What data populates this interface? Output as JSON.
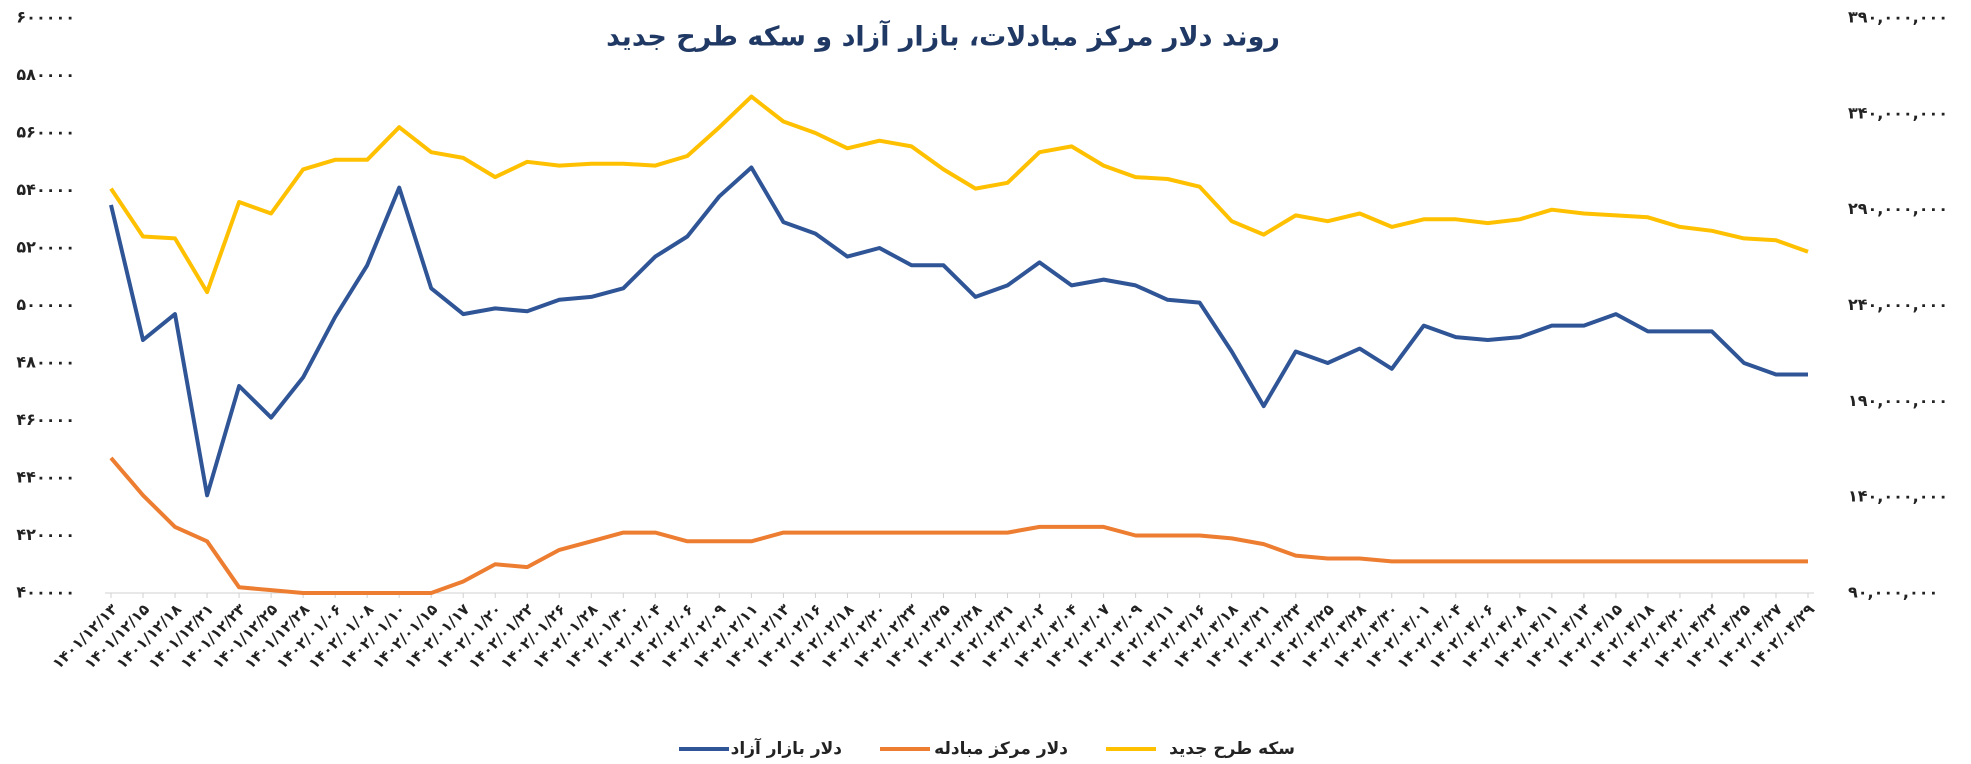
{
  "chart_data": {
    "type": "line",
    "title": "روند دلار مرکز مبادلات، بازار آزاد و سکه طرح جدید",
    "categories": [
      "۱۴۰۱/۱۲/۱۳",
      "۱۴۰۱/۱۲/۱۵",
      "۱۴۰۱/۱۲/۱۸",
      "۱۴۰۱/۱۲/۲۱",
      "۱۴۰۱/۱۲/۲۳",
      "۱۴۰۱/۱۲/۲۵",
      "۱۴۰۱/۱۲/۲۸",
      "۱۴۰۲/۰۱/۰۶",
      "۱۴۰۲/۰۱/۰۸",
      "۱۴۰۲/۰۱/۱۰",
      "۱۴۰۲/۰۱/۱۵",
      "۱۴۰۲/۰۱/۱۷",
      "۱۴۰۲/۰۱/۲۰",
      "۱۴۰۲/۰۱/۲۲",
      "۱۴۰۲/۰۱/۲۶",
      "۱۴۰۲/۰۱/۲۸",
      "۱۴۰۲/۰۱/۳۰",
      "۱۴۰۲/۰۲/۰۴",
      "۱۴۰۲/۰۲/۰۶",
      "۱۴۰۲/۰۲/۰۹",
      "۱۴۰۲/۰۲/۱۱",
      "۱۴۰۲/۰۲/۱۳",
      "۱۴۰۲/۰۲/۱۶",
      "۱۴۰۲/۰۲/۱۸",
      "۱۴۰۲/۰۲/۲۰",
      "۱۴۰۲/۰۲/۲۳",
      "۱۴۰۲/۰۲/۲۵",
      "۱۴۰۲/۰۲/۲۸",
      "۱۴۰۲/۰۲/۳۱",
      "۱۴۰۲/۰۳/۰۲",
      "۱۴۰۲/۰۳/۰۴",
      "۱۴۰۲/۰۳/۰۷",
      "۱۴۰۲/۰۳/۰۹",
      "۱۴۰۲/۰۳/۱۱",
      "۱۴۰۲/۰۳/۱۶",
      "۱۴۰۲/۰۳/۱۸",
      "۱۴۰۲/۰۳/۲۱",
      "۱۴۰۲/۰۳/۲۳",
      "۱۴۰۲/۰۳/۲۵",
      "۱۴۰۲/۰۳/۲۸",
      "۱۴۰۲/۰۳/۳۰",
      "۱۴۰۲/۰۴/۰۱",
      "۱۴۰۲/۰۴/۰۴",
      "۱۴۰۲/۰۴/۰۶",
      "۱۴۰۲/۰۴/۰۸",
      "۱۴۰۲/۰۴/۱۱",
      "۱۴۰۲/۰۴/۱۳",
      "۱۴۰۲/۰۴/۱۵",
      "۱۴۰۲/۰۴/۱۸",
      "۱۴۰۲/۰۴/۲۰",
      "۱۴۰۲/۰۴/۲۲",
      "۱۴۰۲/۰۴/۲۵",
      "۱۴۰۲/۰۴/۲۷",
      "۱۴۰۲/۰۴/۲۹"
    ],
    "series": [
      {
        "name": "دلار بازار آزاد",
        "color": "#2f5597",
        "values": [
          535000,
          488000,
          497000,
          434000,
          472000,
          461000,
          475000,
          496000,
          514000,
          541000,
          506000,
          497000,
          499000,
          498000,
          502000,
          503000,
          506000,
          517000,
          524000,
          538000,
          548000,
          529000,
          525000,
          517000,
          520000,
          514000,
          514000,
          503000,
          507000,
          515000,
          507000,
          509000,
          507000,
          502000,
          501000,
          484000,
          465000,
          484000,
          480000,
          485000,
          478000,
          493000,
          489000,
          488000,
          489000,
          493000,
          493000,
          497000,
          491000,
          491000,
          491000,
          480000,
          476000,
          476000
        ]
      },
      {
        "name": "دلار مرکز مبادله",
        "color": "#ed7d31",
        "values": [
          447000,
          434000,
          423000,
          418000,
          402000,
          401000,
          400000,
          400000,
          400000,
          400000,
          400000,
          404000,
          410000,
          409000,
          415000,
          418000,
          421000,
          421000,
          418000,
          418000,
          418000,
          421000,
          421000,
          421000,
          421000,
          421000,
          421000,
          421000,
          421000,
          423000,
          423000,
          423000,
          420000,
          420000,
          420000,
          419000,
          417000,
          413000,
          412000,
          412000,
          411000,
          411000,
          411000,
          411000,
          411000,
          411000,
          411000,
          411000,
          411000,
          411000,
          411000,
          411000,
          411000,
          411000
        ]
      },
      {
        "name": "سکه طرح جدید",
        "color": "#ffc000",
        "axis": "y2",
        "values": [
          301000000,
          276000000,
          275000000,
          247000000,
          294000000,
          288000000,
          311000000,
          316000000,
          316000000,
          333000000,
          320000000,
          317000000,
          307000000,
          315000000,
          313000000,
          314000000,
          314000000,
          313000000,
          318000000,
          333000000,
          349000000,
          336000000,
          330000000,
          322000000,
          326000000,
          323000000,
          311000000,
          301000000,
          304000000,
          320000000,
          323000000,
          313000000,
          307000000,
          306000000,
          302000000,
          284000000,
          277000000,
          287000000,
          284000000,
          288000000,
          281000000,
          285000000,
          285000000,
          283000000,
          285000000,
          290000000,
          288000000,
          287000000,
          286000000,
          281000000,
          279000000,
          275000000,
          274000000,
          268000000
        ]
      }
    ],
    "ylim": [
      400000,
      600000
    ],
    "yticks": [
      {
        "value": 400000,
        "label": "۴۰۰۰۰۰"
      },
      {
        "value": 420000,
        "label": "۴۲۰۰۰۰"
      },
      {
        "value": 440000,
        "label": "۴۴۰۰۰۰"
      },
      {
        "value": 460000,
        "label": "۴۶۰۰۰۰"
      },
      {
        "value": 480000,
        "label": "۴۸۰۰۰۰"
      },
      {
        "value": 500000,
        "label": "۵۰۰۰۰۰"
      },
      {
        "value": 520000,
        "label": "۵۲۰۰۰۰"
      },
      {
        "value": 540000,
        "label": "۵۴۰۰۰۰"
      },
      {
        "value": 560000,
        "label": "۵۶۰۰۰۰"
      },
      {
        "value": 580000,
        "label": "۵۸۰۰۰۰"
      },
      {
        "value": 600000,
        "label": "۶۰۰۰۰۰"
      }
    ],
    "y2lim": [
      90000000,
      390000000
    ],
    "y2ticks": [
      {
        "value": 90000000,
        "label": "۹۰,۰۰۰,۰۰۰"
      },
      {
        "value": 140000000,
        "label": "۱۴۰,۰۰۰,۰۰۰"
      },
      {
        "value": 190000000,
        "label": "۱۹۰,۰۰۰,۰۰۰"
      },
      {
        "value": 240000000,
        "label": "۲۴۰,۰۰۰,۰۰۰"
      },
      {
        "value": 290000000,
        "label": "۲۹۰,۰۰۰,۰۰۰"
      },
      {
        "value": 340000000,
        "label": "۳۴۰,۰۰۰,۰۰۰"
      },
      {
        "value": 390000000,
        "label": "۳۹۰,۰۰۰,۰۰۰"
      }
    ],
    "grid": false,
    "legend": "bottom"
  }
}
